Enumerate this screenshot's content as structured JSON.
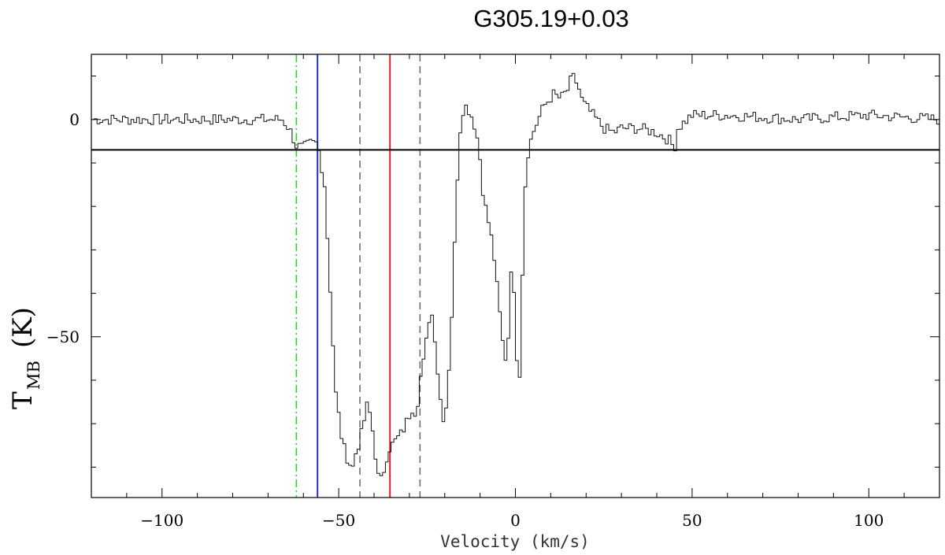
{
  "chart_data": {
    "type": "line",
    "title": "G305.19+0.03",
    "xlabel": "Velocity (km/s)",
    "ylabel": {
      "main": "T",
      "sub": "MB",
      "unit": "(K)"
    },
    "xlim": [
      -120,
      120
    ],
    "ylim": [
      -87,
      15
    ],
    "xticks": [
      -100,
      -50,
      0,
      50,
      100
    ],
    "yticks": [
      0,
      -50
    ],
    "grid": false,
    "baseline": -7,
    "vlines": [
      {
        "x": -62,
        "color": "#22dd22",
        "style": "dashdot"
      },
      {
        "x": -56,
        "color": "#2233bb",
        "style": "solid"
      },
      {
        "x": -44,
        "color": "#666666",
        "style": "dashed"
      },
      {
        "x": -35.5,
        "color": "#dd2222",
        "style": "solid"
      },
      {
        "x": -27,
        "color": "#666666",
        "style": "dashed"
      }
    ],
    "spectrum": [
      [
        -120,
        0
      ],
      [
        -100,
        0
      ],
      [
        -80,
        0
      ],
      [
        -66,
        0
      ],
      [
        -64,
        -2
      ],
      [
        -62,
        -6
      ],
      [
        -60,
        -6.5
      ],
      [
        -58,
        -5.5
      ],
      [
        -56,
        -5.5
      ],
      [
        -55,
        -10
      ],
      [
        -54,
        -15
      ],
      [
        -53,
        -30
      ],
      [
        -52,
        -45
      ],
      [
        -51,
        -62
      ],
      [
        -50,
        -68
      ],
      [
        -49,
        -74
      ],
      [
        -48,
        -77
      ],
      [
        -47,
        -79
      ],
      [
        -46,
        -80
      ],
      [
        -45,
        -76
      ],
      [
        -44,
        -74
      ],
      [
        -43,
        -70
      ],
      [
        -42,
        -66
      ],
      [
        -41,
        -68
      ],
      [
        -40,
        -74
      ],
      [
        -39,
        -82
      ],
      [
        -38,
        -83
      ],
      [
        -37,
        -80
      ],
      [
        -36,
        -76
      ],
      [
        -35,
        -75
      ],
      [
        -34,
        -74
      ],
      [
        -33,
        -73
      ],
      [
        -32,
        -72
      ],
      [
        -31,
        -70
      ],
      [
        -30,
        -68
      ],
      [
        -29,
        -66
      ],
      [
        -28,
        -68
      ],
      [
        -27,
        -60
      ],
      [
        -26,
        -56
      ],
      [
        -25,
        -50
      ],
      [
        -24,
        -43
      ],
      [
        -23,
        -48
      ],
      [
        -22,
        -58
      ],
      [
        -21,
        -66
      ],
      [
        -20,
        -70
      ],
      [
        -19,
        -60
      ],
      [
        -18,
        -45
      ],
      [
        -17,
        -25
      ],
      [
        -16,
        -5
      ],
      [
        -15,
        2
      ],
      [
        -14,
        3
      ],
      [
        -13,
        2
      ],
      [
        -12,
        0
      ],
      [
        -11,
        -3
      ],
      [
        -10,
        -9
      ],
      [
        -9,
        -18
      ],
      [
        -8,
        -22
      ],
      [
        -7,
        -26
      ],
      [
        -6,
        -32
      ],
      [
        -5,
        -40
      ],
      [
        -4,
        -48
      ],
      [
        -3,
        -56
      ],
      [
        -2,
        -50
      ],
      [
        -1,
        -30
      ],
      [
        0,
        -48
      ],
      [
        1,
        -64
      ],
      [
        2,
        -35
      ],
      [
        3,
        -10
      ],
      [
        4,
        -6
      ],
      [
        5,
        -3
      ],
      [
        6,
        -1
      ],
      [
        7,
        1
      ],
      [
        8,
        3
      ],
      [
        9,
        4
      ],
      [
        10,
        5
      ],
      [
        11,
        6
      ],
      [
        12,
        5
      ],
      [
        13,
        5
      ],
      [
        14,
        6
      ],
      [
        15,
        7
      ],
      [
        16,
        10
      ],
      [
        17,
        9
      ],
      [
        18,
        7
      ],
      [
        19,
        4
      ],
      [
        20,
        3
      ],
      [
        22,
        1
      ],
      [
        25,
        -2
      ],
      [
        28,
        -3
      ],
      [
        30,
        -2
      ],
      [
        35,
        -2
      ],
      [
        40,
        -3
      ],
      [
        44,
        -5
      ],
      [
        45,
        -7
      ],
      [
        46,
        -2
      ],
      [
        50,
        1
      ],
      [
        60,
        1
      ],
      [
        80,
        0
      ],
      [
        100,
        1
      ],
      [
        120,
        0
      ]
    ]
  }
}
